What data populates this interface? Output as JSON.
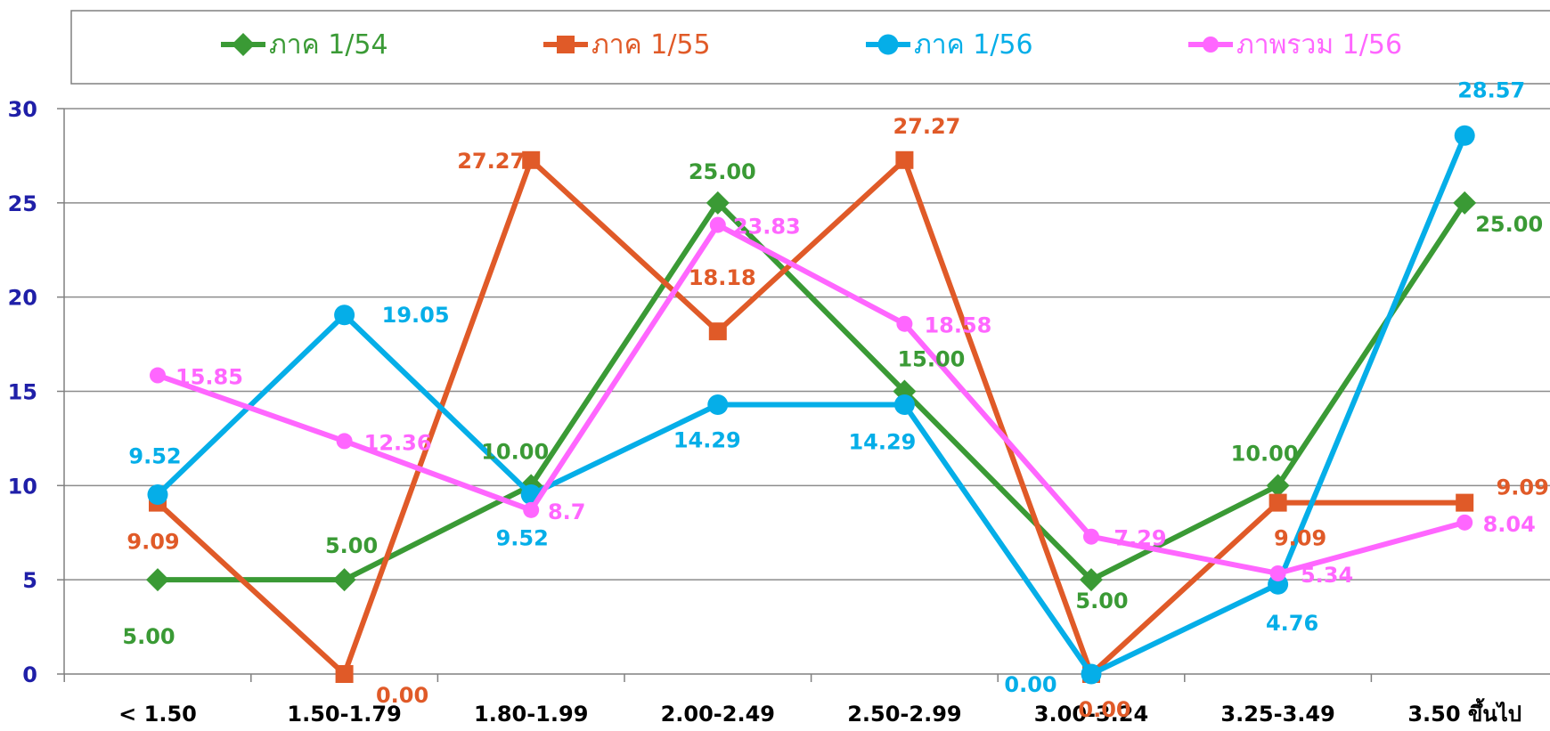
{
  "chart_data": {
    "type": "line",
    "categories": [
      "< 1.50",
      "1.50-1.79",
      "1.80-1.99",
      "2.00-2.49",
      "2.50-2.99",
      "3.00-3.24",
      "3.25-3.49",
      "3.50  ขึ้นไป"
    ],
    "ylim": [
      0,
      30
    ],
    "yticks": [
      0,
      5,
      10,
      15,
      20,
      25,
      30
    ],
    "grid": true,
    "legend": "top",
    "series": [
      {
        "name": "ภาค 1/54",
        "color": "#3a9a35",
        "marker": "diamond",
        "values": [
          5,
          5,
          10,
          25,
          15,
          5,
          10,
          25
        ],
        "labels": [
          "5.00",
          "5.00",
          "10.00",
          "25.00",
          "15.00",
          "5.00",
          "10.00",
          "25.00"
        ]
      },
      {
        "name": "ภาค 1/55",
        "color": "#e05a28",
        "marker": "square",
        "values": [
          9.09,
          0,
          27.27,
          18.18,
          27.27,
          0,
          9.09,
          9.09
        ],
        "labels": [
          "9.09",
          "0.00",
          "27.27",
          "18.18",
          "27.27",
          "0.00",
          "9.09",
          "9.09"
        ]
      },
      {
        "name": "ภาค 1/56",
        "color": "#05aee8",
        "marker": "circle",
        "values": [
          9.52,
          19.05,
          9.52,
          14.29,
          14.29,
          0,
          4.76,
          28.57
        ],
        "labels": [
          "9.52",
          "19.05",
          "9.52",
          "14.29",
          "14.29",
          "0.00",
          "4.76",
          "28.57"
        ]
      },
      {
        "name": "ภาพรวม 1/56",
        "color": "#ff66ff",
        "marker": "circle-small",
        "values": [
          15.85,
          12.36,
          8.7,
          23.83,
          18.58,
          7.29,
          5.34,
          8.04
        ],
        "labels": [
          "15.85",
          "12.36",
          "8.7",
          "23.83",
          "18.58",
          "7.29",
          "5.34",
          "8.04"
        ]
      }
    ]
  }
}
